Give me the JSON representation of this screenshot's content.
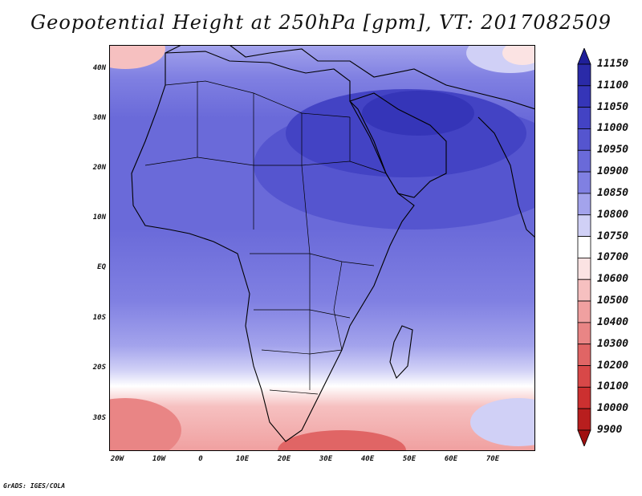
{
  "title": "Geopotential Height at 250hPa [gpm], VT: 2017082509",
  "credit": "GrADS: IGES/COLA",
  "map": {
    "lat_labels": [
      "40N",
      "30N",
      "20N",
      "10N",
      "EQ",
      "10S",
      "20S",
      "30S"
    ],
    "lon_labels": [
      "20W",
      "10W",
      "0",
      "10E",
      "20E",
      "30E",
      "40E",
      "50E",
      "60E",
      "70E"
    ],
    "lat_range": [
      -36,
      44
    ],
    "lon_range": [
      -22,
      80
    ]
  },
  "colorbar": {
    "levels": [
      "11150",
      "11100",
      "11050",
      "11000",
      "10950",
      "10900",
      "10850",
      "10800",
      "10750",
      "10700",
      "10600",
      "10500",
      "10400",
      "10300",
      "10200",
      "10100",
      "10000",
      "9900"
    ],
    "colors": [
      "#1f1f99",
      "#2a2aa8",
      "#3535b8",
      "#4343c4",
      "#5555cf",
      "#6a6ad9",
      "#8080e2",
      "#a3a3ec",
      "#d0d0f6",
      "#ffffff",
      "#fbe3e3",
      "#f6c0c0",
      "#f0a0a0",
      "#e98585",
      "#e06565",
      "#d84848",
      "#cc3030",
      "#b81e1e",
      "#a01010"
    ]
  }
}
